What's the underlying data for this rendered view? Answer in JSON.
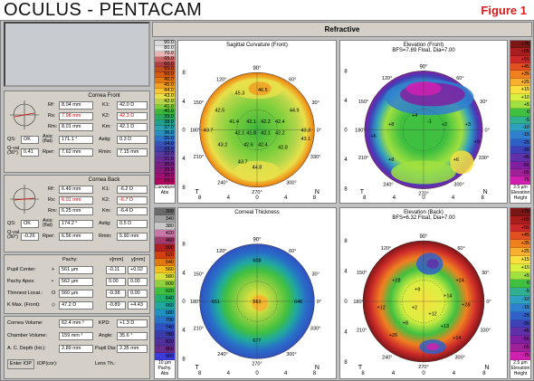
{
  "header": {
    "title": "OCULUS  -  PENTACAM",
    "figure_label": "Figure 1"
  },
  "tab": {
    "label": "Refractive"
  },
  "cornea_front": {
    "title": "Cornea Front",
    "rf_label": "Rf:",
    "rf": "8.04 mm",
    "rs_label": "Rs:",
    "rs": "7.98 mm",
    "rm_label": "Rm:",
    "rm": "8.01 mm",
    "k1_label": "K1:",
    "k1": "42.0 D",
    "k2_label": "K2:",
    "k2": "42.3 D",
    "km_label": "Km:",
    "km": "42.1 D",
    "qs_label": "QS:",
    "qs": "OK",
    "axis_label": "Axis: (flat)",
    "axis": "171.1 °",
    "astig_label": "Astig:",
    "astig": "0.3 D",
    "qval_label": "Q-val. (30°)",
    "qval": "0.41",
    "rper_label": "Rper:",
    "rper": "7.62 mm",
    "rmin_label": "Rmin:",
    "rmin": "7.15 mm"
  },
  "cornea_back": {
    "title": "Cornea Back",
    "rf_label": "Rf:",
    "rf": "6.49 mm",
    "rs_label": "Rs:",
    "rs": "6.01 mm",
    "rm_label": "Rm:",
    "rm": "6.25 mm",
    "k1_label": "K1:",
    "k1": "-6.2 D",
    "k2_label": "K2:",
    "k2": "-6.7 D",
    "km_label": "Km:",
    "km": "-6.4 D",
    "qs_label": "QS:",
    "qs": "OK",
    "axis_label": "Axis: (flat)",
    "axis": "174.2 °",
    "astig_label": "Astig:",
    "astig": "0.5 D",
    "qval_label": "Q-val. (30°)",
    "qval": "-0.26",
    "rper_label": "Rper:",
    "rper": "6.56 mm",
    "rmin_label": "Rmin:",
    "rmin": "5.90 mm"
  },
  "pachy": {
    "col_pachy": "Pachy:",
    "col_x": "x[mm]",
    "col_y": "y[mm]",
    "rows": [
      {
        "label": "Pupil Center:",
        "sym": "+",
        "pachy": "561 µm",
        "x": "-0.11",
        "y": "+0.02"
      },
      {
        "label": "Pachy Apex:",
        "sym": "•",
        "pachy": "562 µm",
        "x": "0.00",
        "y": "0.00"
      },
      {
        "label": "Thinnest Locat.:",
        "sym": "O",
        "pachy": "560 µm",
        "x": "-0.38",
        "y": "0.00"
      },
      {
        "label": "K Max. (Front):",
        "sym": "◇",
        "pachy": "47.2 D",
        "x": "-0.89",
        "y": "+4.43"
      }
    ]
  },
  "volumes": {
    "cornea_vol_label": "Cornea Volume:",
    "cornea_vol": "62.4 mm ³",
    "kpd_label": "KPD:",
    "kpd": "+1.3 D",
    "chamber_vol_label": "Chamber Volume:",
    "chamber_vol": "159 mm ³",
    "angle_label": "Angle:",
    "angle": "35.6 °",
    "acd_label": "A. C. Depth (Int.):",
    "acd": "2.89 mm",
    "pupil_dia_label": "Pupil Dia:",
    "pupil_dia": "2.35 mm",
    "iop_button": "Enter IOP",
    "iop_corr": "IOP(cor):",
    "lens_label": "Lens Th.:"
  },
  "scales": {
    "curvature": {
      "values": [
        "90.0",
        "80.0",
        "70.0",
        "65.0",
        "60.0",
        "55.0",
        "50.0",
        "46.0",
        "45.0",
        "44.0",
        "43.0",
        "42.0",
        "41.0",
        "40.0",
        "39.0",
        "38.0",
        "37.0",
        "36.0",
        "35.0",
        "34.0",
        "33.0",
        "32.0",
        "31.0",
        "30.0",
        "25.0",
        "20.0",
        "10.0"
      ],
      "colors": [
        "#d9d9d9",
        "#e6e6e6",
        "#e8b4b4",
        "#cc6666",
        "#b04040",
        "#c04a1a",
        "#d45a12",
        "#e07a10",
        "#f0a020",
        "#f5c531",
        "#e8e04a",
        "#b5d64a",
        "#7ccf3c",
        "#3cb53c",
        "#2aa860",
        "#20a08c",
        "#2aa0b0",
        "#2a8cc0",
        "#3070c8",
        "#3850b8",
        "#4040a8",
        "#5a3aa0",
        "#6a2c90",
        "#7a2080",
        "#8a1878",
        "#a01070",
        "#b00860"
      ],
      "bottom": [
        "Curvature",
        "Abs"
      ]
    },
    "thickness": {
      "values": [
        "300",
        "340",
        "380",
        "420",
        "460",
        "500",
        "520",
        "540",
        "560",
        "580",
        "600",
        "620",
        "640",
        "660",
        "680",
        "700",
        "740",
        "780",
        "820",
        "860",
        "900"
      ],
      "colors": [
        "#6a6a6a",
        "#a0a0a0",
        "#c8c8c8",
        "#c878a8",
        "#a03c6c",
        "#b02020",
        "#d04010",
        "#e07a10",
        "#f0c020",
        "#d8e040",
        "#90d040",
        "#40c040",
        "#20b070",
        "#20a8a0",
        "#2090c0",
        "#2870c8",
        "#3050c0",
        "#3a3aa8",
        "#50309a",
        "#682a8a",
        "#3c3cdc"
      ],
      "bottom": [
        "10 µm",
        "Pachy.",
        "Abs"
      ]
    },
    "elevation_front": {
      "values": [
        "+75",
        "+65",
        "+55",
        "+45",
        "+35",
        "+25",
        "+15",
        "+10",
        "+5",
        "0",
        "-5",
        "-10",
        "-15",
        "-25",
        "-35",
        "-45",
        "-55",
        "-65",
        "-75"
      ],
      "colors": [
        "#7a1616",
        "#a81e1e",
        "#cc2a2a",
        "#e05020",
        "#f08020",
        "#f8b030",
        "#f8e040",
        "#d8f040",
        "#a0e040",
        "#40c040",
        "#30b090",
        "#30a0c0",
        "#3080d0",
        "#3060c8",
        "#4040b8",
        "#6030a8",
        "#8020a0",
        "#a02098",
        "#d020b0"
      ],
      "bottom": [
        "2.5 µm",
        "Elevation",
        "Height"
      ]
    },
    "elevation_back": {
      "values": [
        "+75",
        "+65",
        "+55",
        "+45",
        "+35",
        "+25",
        "+15",
        "+10",
        "+5",
        "0",
        "-5",
        "-10",
        "-15",
        "-25",
        "-35",
        "-45",
        "-55",
        "-65",
        "-75"
      ],
      "colors": [
        "#7a1616",
        "#a81e1e",
        "#cc2a2a",
        "#e05020",
        "#f08020",
        "#f8b030",
        "#f8e040",
        "#d8f040",
        "#a0e040",
        "#40c040",
        "#30b090",
        "#30a0c0",
        "#3080d0",
        "#3060c8",
        "#4040b8",
        "#6030a8",
        "#8020a0",
        "#a02098",
        "#d020b0"
      ],
      "bottom": [
        "2.5 µm",
        "Elevation",
        "Height"
      ]
    }
  },
  "maps": {
    "sagittal": {
      "title": "Sagittal Curvature (Front)",
      "subtitle": "",
      "labels": [
        "45.3",
        "46.5",
        "42.5",
        "44.9",
        "41.4",
        "42.1",
        "42.2",
        "42.4",
        "43.3",
        "43.7",
        "41.8",
        "42.1",
        "42.1",
        "42.2",
        "43.1",
        "43.2",
        "42.6",
        "42.4",
        "42.8",
        "43.7",
        "44.8"
      ]
    },
    "elev_front": {
      "title": "Elevation (Front)",
      "subtitle": "BFS=7.89 Float, Dia=7.00",
      "labels": [
        "+8",
        "+4",
        "-1",
        "+2",
        "+3",
        "+6",
        "+9",
        "+8",
        "+6"
      ]
    },
    "thickness": {
      "title": "Corneal Thickness",
      "subtitle": "",
      "labels": [
        "608",
        "651",
        "561",
        "646",
        "677"
      ]
    },
    "elev_back": {
      "title": "Elevation (Back)",
      "subtitle": "BFS=6.32 Float, Dia=7.00",
      "labels": [
        "+28",
        "+24",
        "+9",
        "+14",
        "+28",
        "+12",
        "+2",
        "+12",
        "+8",
        "+13",
        "+26",
        "+14"
      ]
    },
    "ticks": {
      "top": "90°",
      "deg120": "120°",
      "deg60": "60°",
      "deg150": "150°",
      "deg30": "30°",
      "deg180": "180°",
      "deg0": "0°",
      "deg210": "210°",
      "deg330": "330°",
      "deg240": "240°",
      "deg300": "300°",
      "deg270": "270°",
      "y_ticks": [
        "8",
        "4",
        "0",
        "4",
        "8"
      ],
      "x_ticks": [
        "8",
        "4",
        "0",
        "4",
        "8"
      ],
      "T": "T",
      "N": "N"
    }
  }
}
